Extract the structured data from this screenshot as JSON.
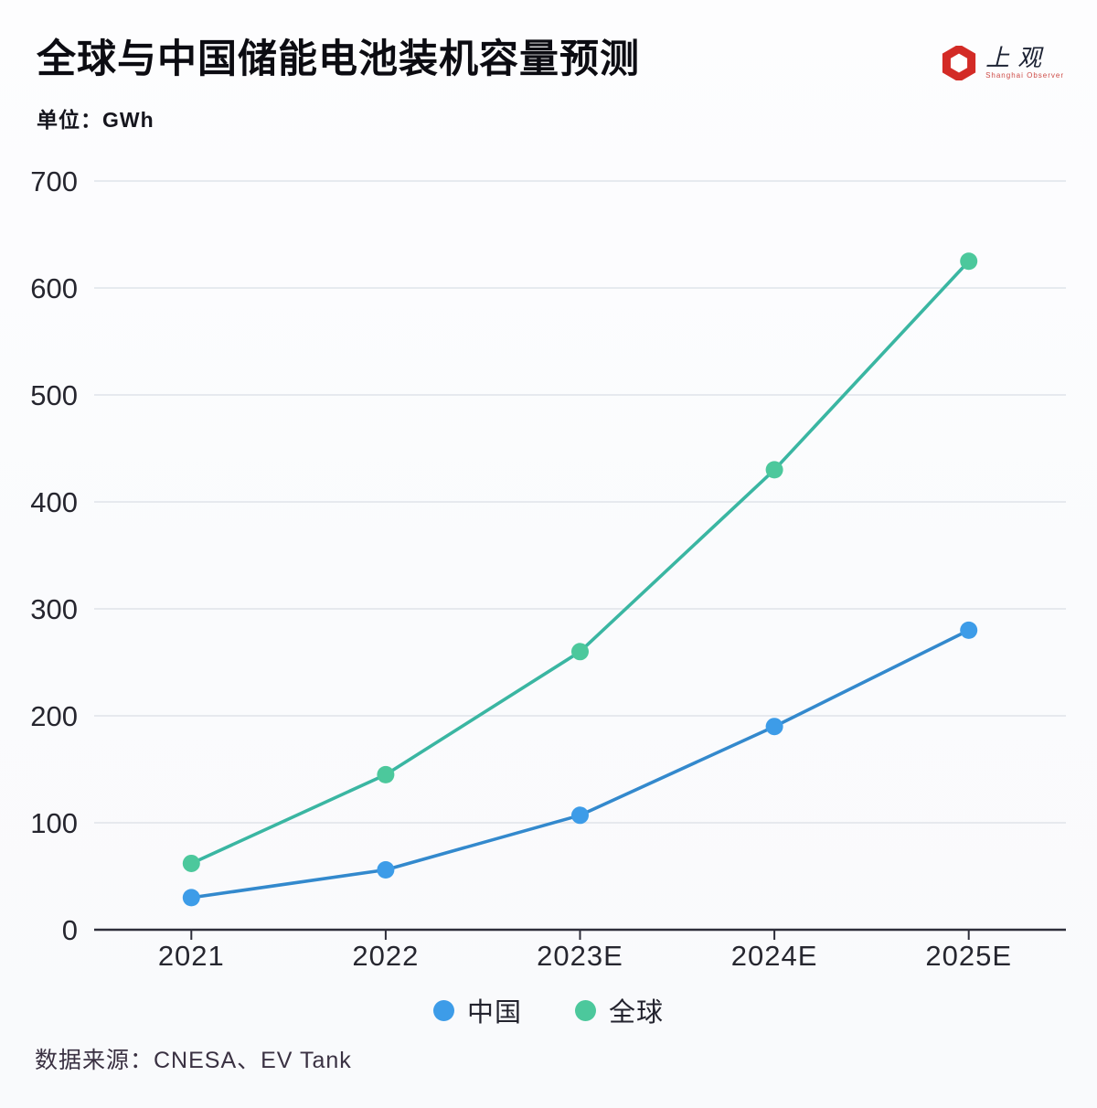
{
  "header": {
    "title": "全球与中国储能电池装机容量预测",
    "unit_label": "单位：GWh",
    "logo": {
      "name": "上观",
      "subtitle": "Shanghai Observer",
      "icon_color": "#d32b26"
    }
  },
  "chart_data": {
    "type": "line",
    "title": "全球与中国储能电池装机容量预测",
    "ylabel": "GWh",
    "categories": [
      "2021",
      "2022",
      "2023E",
      "2024E",
      "2025E"
    ],
    "series": [
      {
        "name": "中国",
        "values": [
          30,
          56,
          107,
          190,
          280
        ],
        "color": "#3389cd",
        "marker_color": "#3d9ce8"
      },
      {
        "name": "全球",
        "values": [
          62,
          145,
          260,
          430,
          625
        ],
        "color": "#3ab6a2",
        "marker_color": "#4cc89c"
      }
    ],
    "ylim": [
      0,
      700
    ],
    "ytick_step": 100,
    "grid": true,
    "grid_color": "#dfe3ea",
    "axis_color": "#2e2e3a",
    "tick_label_color": "#26262f",
    "legend_position": "bottom"
  },
  "footer": {
    "source": "数据来源：CNESA、EV Tank"
  }
}
